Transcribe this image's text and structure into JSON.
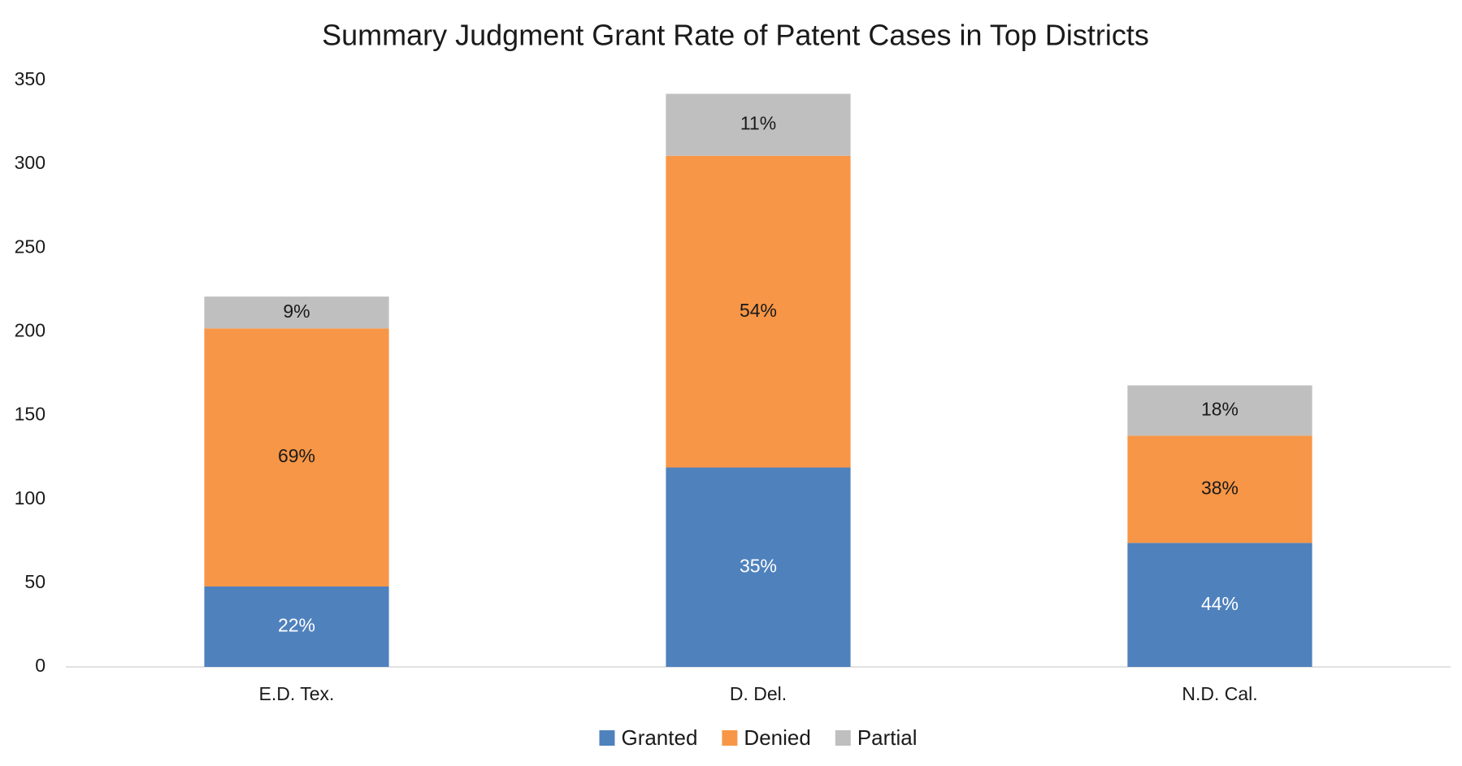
{
  "chart_data": {
    "type": "stacked_bar",
    "title": "Summary Judgment Grant Rate of Patent Cases in Top Districts",
    "categories": [
      "E.D. Tex.",
      "D. Del.",
      "N.D. Cal."
    ],
    "series": [
      {
        "name": "Granted",
        "color": "#4f81bd",
        "label_color": "#ffffff",
        "values": [
          48,
          119,
          74
        ],
        "value_labels": [
          "22%",
          "35%",
          "44%"
        ]
      },
      {
        "name": "Denied",
        "color": "#f79646",
        "label_color": "#1a1a1a",
        "values": [
          154,
          186,
          64
        ],
        "value_labels": [
          "69%",
          "54%",
          "38%"
        ]
      },
      {
        "name": "Partial",
        "color": "#bfbfbf",
        "label_color": "#1a1a1a",
        "values": [
          19,
          37,
          30
        ],
        "value_labels": [
          "9%",
          "11%",
          "18%"
        ]
      }
    ],
    "ylim": [
      0,
      350
    ],
    "yticks": [
      0,
      50,
      100,
      150,
      200,
      250,
      300,
      350
    ],
    "grid": false,
    "legend": "bottom"
  }
}
